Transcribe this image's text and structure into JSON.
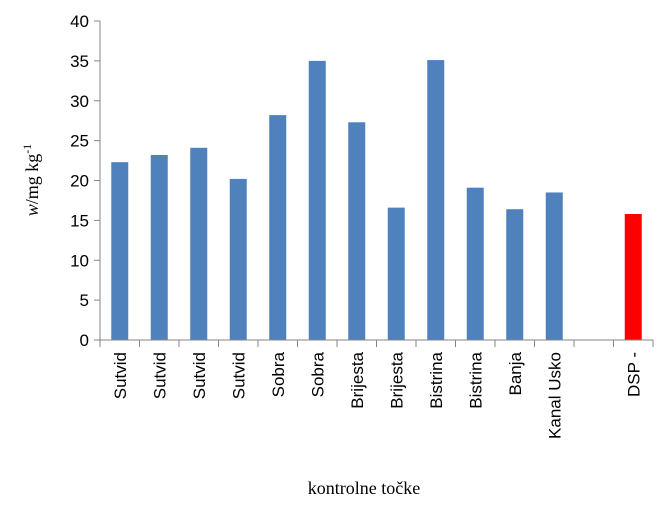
{
  "chart_data": {
    "type": "bar",
    "categories": [
      "Sutvid",
      "Sutvid",
      "Sutvid",
      "Sutvid",
      "Sobra",
      "Sobra",
      "Brijesta",
      "Brijesta",
      "Bistrina",
      "Bistrina",
      "Banja",
      "Kanal Usko",
      "",
      "DSP -"
    ],
    "values": [
      22.3,
      23.2,
      24.1,
      20.2,
      28.2,
      35.0,
      27.3,
      16.6,
      35.1,
      19.1,
      16.4,
      18.5,
      null,
      15.8
    ],
    "colors": [
      "#4f81bd",
      "#4f81bd",
      "#4f81bd",
      "#4f81bd",
      "#4f81bd",
      "#4f81bd",
      "#4f81bd",
      "#4f81bd",
      "#4f81bd",
      "#4f81bd",
      "#4f81bd",
      "#4f81bd",
      "#4f81bd",
      "#ff0000"
    ],
    "ylim": [
      0,
      40
    ],
    "yticks": [
      0,
      5,
      10,
      15,
      20,
      25,
      30,
      35,
      40
    ],
    "xlabel": "kontrolne točke",
    "ylabel": {
      "italic": "w",
      "text": "/mg kg",
      "sup": "-1"
    },
    "grid": false,
    "legend": "none"
  }
}
